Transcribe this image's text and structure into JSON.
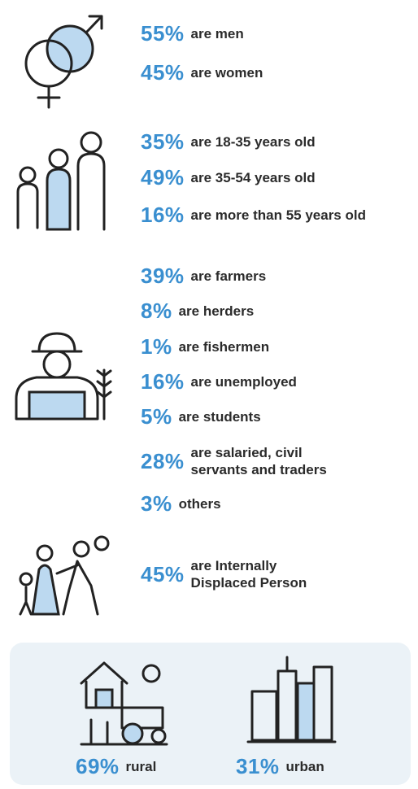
{
  "sections": [
    {
      "items": [
        {
          "percent": "55%",
          "label": "are men"
        },
        {
          "percent": "45%",
          "label": "are women"
        }
      ]
    },
    {
      "items": [
        {
          "percent": "35%",
          "label": "are 18-35 years old"
        },
        {
          "percent": "49%",
          "label": "are 35-54 years old"
        },
        {
          "percent": "16%",
          "label": "are more than 55 years old"
        }
      ]
    },
    {
      "items": [
        {
          "percent": "39%",
          "label": "are farmers"
        },
        {
          "percent": "8%",
          "label": "are herders"
        },
        {
          "percent": "1%",
          "label": "are fishermen"
        },
        {
          "percent": "16%",
          "label": "are unemployed"
        },
        {
          "percent": "5%",
          "label": "are students"
        },
        {
          "percent": "28%",
          "label": "are salaried, civil servants and traders"
        },
        {
          "percent": "3%",
          "label": "others"
        }
      ]
    },
    {
      "items": [
        {
          "percent": "45%",
          "label": "are Internally Displaced Person"
        }
      ]
    }
  ],
  "location": [
    {
      "percent": "69%",
      "label": "rural"
    },
    {
      "percent": "31%",
      "label": "urban"
    }
  ]
}
